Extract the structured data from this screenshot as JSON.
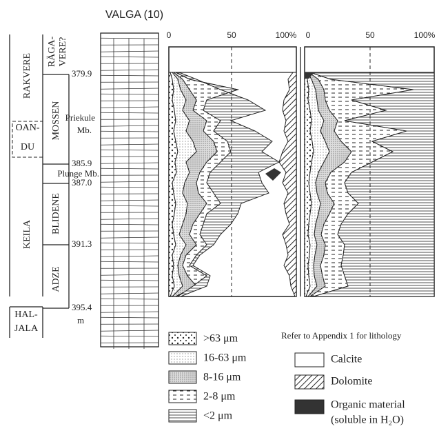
{
  "title": "VALGA (10)",
  "stages": [
    {
      "lines": [
        "RAKVERE"
      ]
    },
    {
      "lines": [
        "OAN-",
        "DU"
      ]
    },
    {
      "lines": [
        "KEILA"
      ]
    },
    {
      "lines": [
        "HAL-",
        "JALA"
      ]
    }
  ],
  "formations": [
    {
      "lines": [
        "RÄGA-",
        "VERE?"
      ]
    },
    {
      "lines": [
        "MOSSEN"
      ]
    },
    {
      "lines": [
        "BLIDENE"
      ]
    },
    {
      "lines": [
        "ADZE"
      ]
    }
  ],
  "members": [
    {
      "lines": [
        "Priekule",
        "Mb."
      ]
    },
    {
      "lines": [
        "Plunge Mb."
      ]
    }
  ],
  "depths": [
    "379.9",
    "385.9",
    "387.0",
    "391.3",
    "395.4"
  ],
  "depth_unit": "m",
  "grain_axis": [
    "0",
    "50",
    "100%"
  ],
  "mineral_axis": [
    "0",
    "50",
    "100%"
  ],
  "grain_legend": [
    ">63 μm",
    "16-63 μm",
    "8-16 μm",
    "2-8 μm",
    "<2 μm"
  ],
  "lithology_note": "Refer to Appendix 1 for lithology",
  "mineral_legend": [
    {
      "lines": [
        "Calcite"
      ]
    },
    {
      "lines": [
        "Dolomite"
      ]
    },
    {
      "lines": [
        "Organic material",
        "(soluble in H₂O)"
      ]
    }
  ]
}
